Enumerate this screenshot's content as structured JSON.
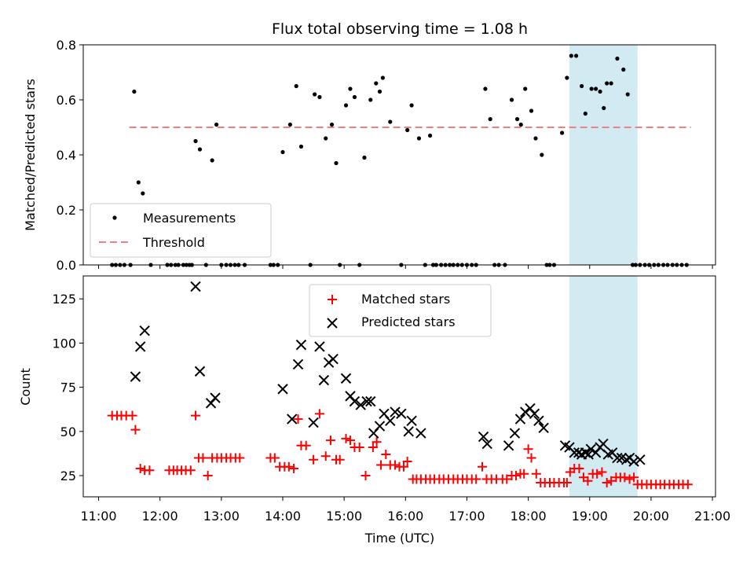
{
  "chart_data": [
    {
      "type": "scatter",
      "title": "Flux total observing time = 1.08 h",
      "ylabel": "Matched/Predicted stars",
      "xlabel": "",
      "ylim": [
        0,
        0.8
      ],
      "xlim": [
        10.75,
        21.05
      ],
      "yticks": [
        "0.0",
        "0.2",
        "0.4",
        "0.6",
        "0.8"
      ],
      "legend": {
        "placement": "lower-left",
        "entries": [
          "Measurements",
          "Threshold"
        ]
      },
      "threshold": {
        "name": "Threshold",
        "value": 0.5,
        "x_start": 11.5,
        "x_end": 20.65,
        "color": "#f08080"
      },
      "highlight": {
        "x_start": 18.67,
        "x_end": 19.78,
        "color": "#add8e6"
      },
      "series": [
        {
          "name": "Measurements",
          "color": "#000000",
          "x": [
            11.22,
            11.28,
            11.35,
            11.42,
            11.52,
            11.58,
            11.65,
            11.72,
            11.85,
            12.12,
            12.18,
            12.25,
            12.3,
            12.38,
            12.43,
            12.48,
            12.52,
            12.58,
            12.65,
            12.75,
            12.85,
            12.92,
            13.0,
            13.08,
            13.15,
            13.22,
            13.28,
            13.38,
            13.8,
            13.85,
            13.92,
            14.0,
            14.12,
            14.22,
            14.3,
            14.45,
            14.52,
            14.6,
            14.7,
            14.8,
            14.87,
            14.93,
            15.03,
            15.1,
            15.17,
            15.25,
            15.33,
            15.43,
            15.52,
            15.58,
            15.63,
            15.75,
            15.93,
            16.03,
            16.1,
            16.22,
            16.32,
            16.4,
            16.45,
            16.5,
            16.58,
            16.65,
            16.72,
            16.78,
            16.85,
            16.92,
            17.0,
            17.08,
            17.15,
            17.3,
            17.38,
            17.45,
            17.52,
            17.62,
            17.73,
            17.82,
            17.88,
            17.95,
            18.05,
            18.12,
            18.22,
            18.3,
            18.35,
            18.42,
            18.55,
            18.63,
            18.7,
            18.78,
            18.87,
            18.93,
            19.03,
            19.1,
            19.17,
            19.23,
            19.28,
            19.35,
            19.45,
            19.55,
            19.62,
            19.7,
            19.75,
            19.82,
            19.9,
            19.97,
            20.05,
            20.12,
            20.2,
            20.27,
            20.35,
            20.42,
            20.5,
            20.58
          ],
          "y": [
            0,
            0,
            0,
            0,
            0,
            0.63,
            0.3,
            0.26,
            0,
            0,
            0,
            0,
            0,
            0,
            0,
            0,
            0,
            0.45,
            0.42,
            0,
            0.38,
            0.51,
            0,
            0,
            0,
            0,
            0,
            0,
            0,
            0,
            0,
            0.41,
            0.51,
            0.65,
            0.43,
            0,
            0.62,
            0.61,
            0.46,
            0.51,
            0.37,
            0,
            0.58,
            0.64,
            0.61,
            0,
            0.39,
            0.6,
            0.66,
            0.63,
            0.68,
            0.52,
            0,
            0.49,
            0.58,
            0.46,
            0,
            0.47,
            0,
            0,
            0,
            0,
            0,
            0,
            0,
            0,
            0,
            0,
            0,
            0.64,
            0.53,
            0,
            0,
            0,
            0.6,
            0.53,
            0.51,
            0.64,
            0.56,
            0.46,
            0.4,
            0,
            0,
            0,
            0.48,
            0.68,
            0.76,
            0.76,
            0.65,
            0.55,
            0.64,
            0.64,
            0.63,
            0.57,
            0.66,
            0.66,
            0.75,
            0.71,
            0.62,
            0,
            0,
            0,
            0,
            0,
            0,
            0,
            0,
            0,
            0,
            0,
            0,
            0
          ]
        }
      ]
    },
    {
      "type": "scatter",
      "title": "",
      "ylabel": "Count",
      "xlabel": "Time (UTC)",
      "ylim": [
        13,
        138
      ],
      "xlim": [
        10.75,
        21.05
      ],
      "yticks": [
        "25",
        "50",
        "75",
        "100",
        "125"
      ],
      "xticks": [
        "11:00",
        "12:00",
        "13:00",
        "14:00",
        "15:00",
        "16:00",
        "17:00",
        "18:00",
        "19:00",
        "20:00",
        "21:00"
      ],
      "legend": {
        "placement": "upper-center",
        "entries": [
          "Matched stars",
          "Predicted stars"
        ]
      },
      "highlight": {
        "x_start": 18.67,
        "x_end": 19.78,
        "color": "#add8e6"
      },
      "series": [
        {
          "name": "Matched stars",
          "marker": "+",
          "color": "#ff0000",
          "x": [
            11.22,
            11.3,
            11.37,
            11.45,
            11.55,
            11.6,
            11.68,
            11.75,
            11.83,
            12.15,
            12.22,
            12.28,
            12.35,
            12.42,
            12.5,
            12.58,
            12.63,
            12.7,
            12.78,
            12.85,
            12.93,
            13.0,
            13.08,
            13.15,
            13.23,
            13.3,
            13.8,
            13.87,
            13.95,
            14.03,
            14.1,
            14.18,
            14.25,
            14.3,
            14.38,
            14.5,
            14.6,
            14.7,
            14.78,
            14.87,
            14.93,
            15.03,
            15.1,
            15.17,
            15.25,
            15.35,
            15.47,
            15.53,
            15.6,
            15.68,
            15.75,
            15.83,
            15.9,
            15.97,
            16.03,
            16.12,
            16.18,
            16.25,
            16.33,
            16.4,
            16.47,
            16.55,
            16.62,
            16.7,
            16.78,
            16.85,
            16.93,
            17.0,
            17.08,
            17.15,
            17.25,
            17.32,
            17.4,
            17.48,
            17.58,
            17.65,
            17.73,
            17.8,
            17.87,
            17.93,
            18.0,
            18.05,
            18.13,
            18.2,
            18.27,
            18.35,
            18.42,
            18.5,
            18.58,
            18.63,
            18.68,
            18.75,
            18.83,
            18.9,
            18.97,
            19.05,
            19.12,
            19.2,
            19.28,
            19.35,
            19.43,
            19.5,
            19.57,
            19.65,
            19.72,
            19.78,
            19.85,
            19.93,
            20.0,
            20.08,
            20.15,
            20.22,
            20.3,
            20.37,
            20.45,
            20.52,
            20.6
          ],
          "y": [
            59,
            59,
            59,
            59,
            59,
            51,
            29,
            28,
            28,
            28,
            28,
            28,
            28,
            28,
            28,
            59,
            35,
            35,
            25,
            35,
            35,
            35,
            35,
            35,
            35,
            35,
            35,
            35,
            30,
            30,
            30,
            29,
            57,
            42,
            42,
            34,
            60,
            36,
            45,
            34,
            34,
            46,
            45,
            41,
            41,
            25,
            41,
            44,
            31,
            37,
            31,
            31,
            30,
            30,
            33,
            23,
            23,
            23,
            23,
            23,
            23,
            23,
            23,
            23,
            23,
            23,
            23,
            23,
            23,
            23,
            30,
            23,
            23,
            23,
            23,
            23,
            25,
            25,
            26,
            26,
            40,
            35,
            26,
            21,
            21,
            21,
            21,
            21,
            21,
            21,
            27,
            29,
            29,
            24,
            22,
            26,
            26,
            27,
            21,
            22,
            24,
            24,
            24,
            23,
            24,
            20,
            20,
            20,
            20,
            20,
            20,
            20,
            20,
            20,
            20,
            20,
            20
          ]
        },
        {
          "name": "Predicted stars",
          "marker": "x",
          "color": "#000000",
          "x": [
            11.6,
            11.68,
            11.75,
            12.58,
            12.65,
            12.83,
            12.9,
            14.0,
            14.15,
            14.25,
            14.3,
            14.5,
            14.6,
            14.67,
            14.75,
            14.82,
            15.03,
            15.1,
            15.17,
            15.27,
            15.37,
            15.43,
            15.48,
            15.58,
            15.65,
            15.75,
            15.83,
            15.93,
            16.05,
            16.1,
            16.25,
            17.27,
            17.33,
            17.68,
            17.78,
            17.87,
            17.95,
            18.03,
            18.1,
            18.17,
            18.25,
            18.6,
            18.67,
            18.75,
            18.82,
            18.87,
            18.93,
            18.98,
            19.02,
            19.1,
            19.17,
            19.22,
            19.3,
            19.37,
            19.45,
            19.52,
            19.6,
            19.65,
            19.72,
            19.82
          ],
          "y": [
            81,
            98,
            107,
            132,
            84,
            66,
            69,
            74,
            57,
            88,
            99,
            55,
            98,
            79,
            89,
            91,
            80,
            70,
            67,
            65,
            67,
            67,
            49,
            53,
            60,
            56,
            61,
            60,
            50,
            56,
            49,
            47,
            43,
            42,
            49,
            57,
            61,
            63,
            60,
            56,
            52,
            42,
            41,
            38,
            38,
            37,
            38,
            37,
            40,
            38,
            41,
            43,
            37,
            38,
            35,
            35,
            34,
            35,
            33,
            34
          ]
        }
      ]
    }
  ]
}
